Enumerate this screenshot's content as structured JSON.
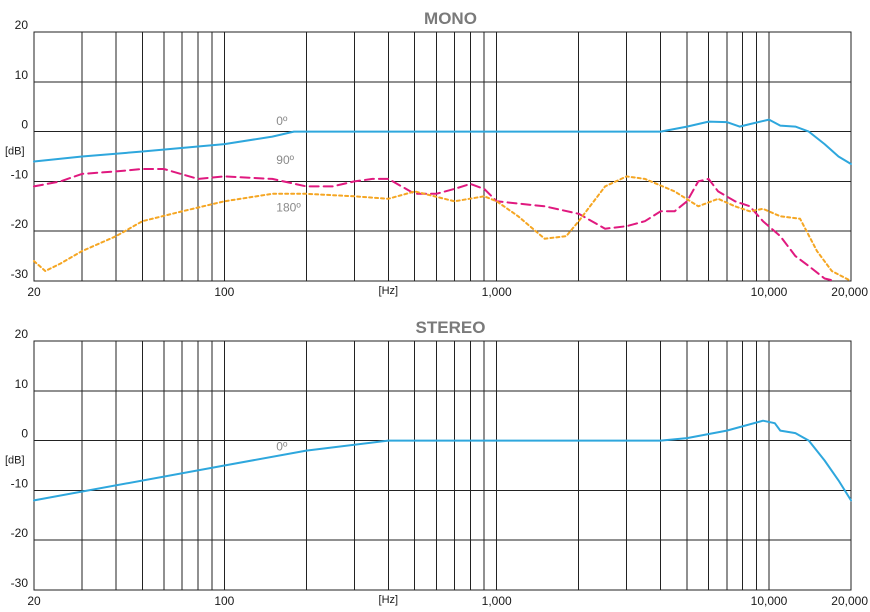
{
  "chart_data": [
    {
      "type": "line",
      "title": "MONO",
      "xlabel": "[Hz]",
      "ylabel": "[dB]",
      "x_scale": "log",
      "xlim": [
        20,
        20000
      ],
      "ylim": [
        -30,
        20
      ],
      "x_ticks": [
        {
          "value": 20,
          "label": "20"
        },
        {
          "value": 100,
          "label": "100"
        },
        {
          "value": 1000,
          "label": "1,000"
        },
        {
          "value": 10000,
          "label": "10,000"
        },
        {
          "value": 20000,
          "label": "20,000"
        }
      ],
      "y_ticks": [
        {
          "value": 20,
          "label": "20"
        },
        {
          "value": 10,
          "label": "10"
        },
        {
          "value": 0,
          "label": "0"
        },
        {
          "value": -10,
          "label": "-10"
        },
        {
          "value": -20,
          "label": "-20"
        },
        {
          "value": -30,
          "label": "-30"
        }
      ],
      "grid": true,
      "series": [
        {
          "name": "0º",
          "color": "#2ea7dd",
          "style": "solid",
          "points": [
            [
              20,
              -6
            ],
            [
              30,
              -5
            ],
            [
              50,
              -4
            ],
            [
              100,
              -2.5
            ],
            [
              150,
              -1
            ],
            [
              180,
              0
            ],
            [
              500,
              0
            ],
            [
              1000,
              0
            ],
            [
              2000,
              0
            ],
            [
              4000,
              0
            ],
            [
              5000,
              1
            ],
            [
              6000,
              2
            ],
            [
              7000,
              1.9
            ],
            [
              7800,
              1
            ],
            [
              8500,
              1.5
            ],
            [
              10000,
              2.4
            ],
            [
              11000,
              1.2
            ],
            [
              12500,
              1
            ],
            [
              14000,
              0
            ],
            [
              16000,
              -2.5
            ],
            [
              18000,
              -5
            ],
            [
              20000,
              -6.5
            ]
          ]
        },
        {
          "name": "90º",
          "color": "#e0197f",
          "style": "dashed",
          "points": [
            [
              20,
              -11
            ],
            [
              25,
              -10
            ],
            [
              30,
              -8.5
            ],
            [
              40,
              -8
            ],
            [
              50,
              -7.5
            ],
            [
              60,
              -7.5
            ],
            [
              80,
              -9.5
            ],
            [
              100,
              -9
            ],
            [
              150,
              -9.5
            ],
            [
              200,
              -11
            ],
            [
              250,
              -11
            ],
            [
              300,
              -10
            ],
            [
              350,
              -9.5
            ],
            [
              400,
              -9.5
            ],
            [
              500,
              -12.5
            ],
            [
              600,
              -12.5
            ],
            [
              700,
              -11.5
            ],
            [
              800,
              -10.5
            ],
            [
              900,
              -11.5
            ],
            [
              1000,
              -14
            ],
            [
              1500,
              -15
            ],
            [
              2000,
              -16.5
            ],
            [
              2500,
              -19.5
            ],
            [
              3000,
              -19
            ],
            [
              3500,
              -18
            ],
            [
              4000,
              -16
            ],
            [
              4500,
              -16
            ],
            [
              5000,
              -14
            ],
            [
              5500,
              -10
            ],
            [
              6000,
              -9.5
            ],
            [
              6500,
              -12
            ],
            [
              7500,
              -14
            ],
            [
              8500,
              -15
            ],
            [
              9500,
              -18
            ],
            [
              11000,
              -21
            ],
            [
              12500,
              -25
            ],
            [
              14000,
              -27
            ],
            [
              16000,
              -29.5
            ],
            [
              17500,
              -30
            ]
          ]
        },
        {
          "name": "180º",
          "color": "#f5a623",
          "style": "dotted",
          "points": [
            [
              20,
              -26
            ],
            [
              22,
              -28
            ],
            [
              25,
              -26.5
            ],
            [
              30,
              -24
            ],
            [
              40,
              -21
            ],
            [
              50,
              -18
            ],
            [
              70,
              -16
            ],
            [
              100,
              -14
            ],
            [
              150,
              -12.5
            ],
            [
              200,
              -12.5
            ],
            [
              300,
              -13
            ],
            [
              400,
              -13.5
            ],
            [
              500,
              -12
            ],
            [
              700,
              -14
            ],
            [
              900,
              -13
            ],
            [
              1000,
              -14
            ],
            [
              1200,
              -17
            ],
            [
              1500,
              -21.5
            ],
            [
              1800,
              -21
            ],
            [
              2000,
              -18
            ],
            [
              2500,
              -11
            ],
            [
              3000,
              -9
            ],
            [
              3500,
              -9.5
            ],
            [
              4500,
              -12
            ],
            [
              5500,
              -15
            ],
            [
              6500,
              -13.5
            ],
            [
              7500,
              -15
            ],
            [
              8500,
              -16
            ],
            [
              9500,
              -15.5
            ],
            [
              11000,
              -17
            ],
            [
              13000,
              -17.5
            ],
            [
              15000,
              -24
            ],
            [
              17000,
              -28
            ],
            [
              20000,
              -30
            ]
          ]
        }
      ],
      "annotations": [
        {
          "text": "0º",
          "x": 150,
          "y": 1.3
        },
        {
          "text": "90º",
          "x": 150,
          "y": -6.5
        },
        {
          "text": "180º",
          "x": 150,
          "y": -16
        }
      ]
    },
    {
      "type": "line",
      "title": "STEREO",
      "xlabel": "[Hz]",
      "ylabel": "[dB]",
      "x_scale": "log",
      "xlim": [
        20,
        20000
      ],
      "ylim": [
        -30,
        20
      ],
      "x_ticks": [
        {
          "value": 20,
          "label": "20"
        },
        {
          "value": 100,
          "label": "100"
        },
        {
          "value": 1000,
          "label": "1,000"
        },
        {
          "value": 10000,
          "label": "10,000"
        },
        {
          "value": 20000,
          "label": "20,000"
        }
      ],
      "y_ticks": [
        {
          "value": 20,
          "label": "20"
        },
        {
          "value": 10,
          "label": "10"
        },
        {
          "value": 0,
          "label": "0"
        },
        {
          "value": -10,
          "label": "-10"
        },
        {
          "value": -20,
          "label": "-20"
        },
        {
          "value": -30,
          "label": "-30"
        }
      ],
      "grid": true,
      "series": [
        {
          "name": "0º",
          "color": "#2ea7dd",
          "style": "solid",
          "points": [
            [
              20,
              -12
            ],
            [
              100,
              -5
            ],
            [
              200,
              -2
            ],
            [
              400,
              0
            ],
            [
              1000,
              0
            ],
            [
              2000,
              0
            ],
            [
              4000,
              0
            ],
            [
              5000,
              0.5
            ],
            [
              7000,
              2
            ],
            [
              9500,
              4
            ],
            [
              10500,
              3.5
            ],
            [
              11000,
              2
            ],
            [
              12500,
              1.5
            ],
            [
              14000,
              0
            ],
            [
              16000,
              -4
            ],
            [
              18000,
              -8
            ],
            [
              20000,
              -12
            ]
          ]
        }
      ],
      "annotations": [
        {
          "text": "0º",
          "x": 150,
          "y": -2
        }
      ]
    }
  ]
}
